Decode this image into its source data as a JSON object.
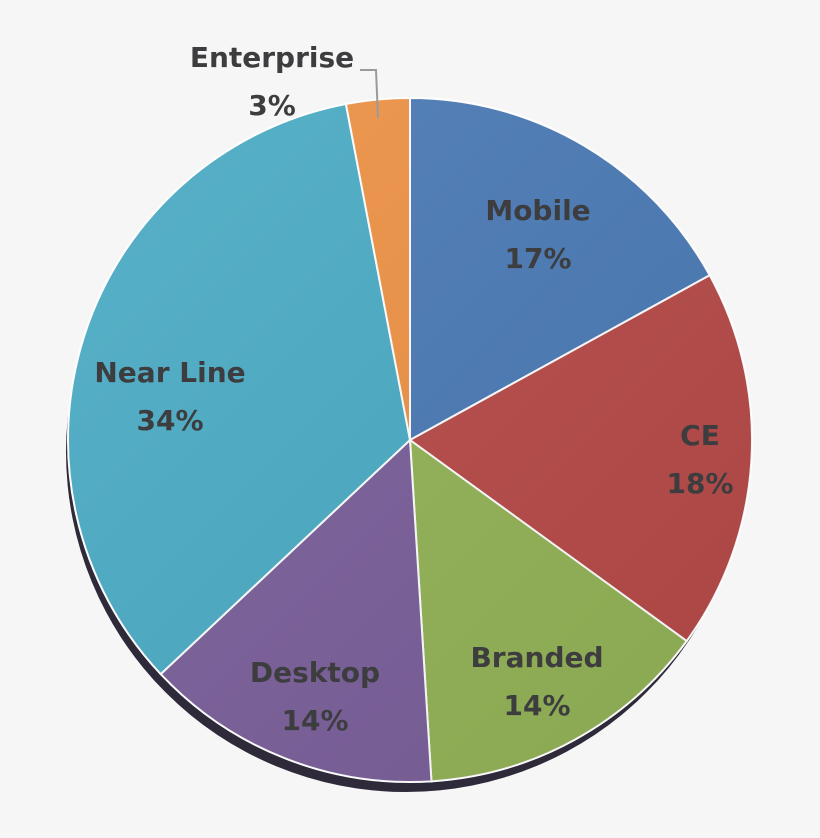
{
  "chart_data": {
    "type": "pie",
    "title": "",
    "categories": [
      "Mobile",
      "CE",
      "Branded",
      "Desktop",
      "Near Line",
      "Enterprise"
    ],
    "values": [
      17,
      18,
      14,
      14,
      34,
      3
    ],
    "labels": [
      "17%",
      "18%",
      "14%",
      "14%",
      "34%",
      "3%"
    ],
    "colors": [
      "#4a7ab5",
      "#b64a48",
      "#93b356",
      "#7a5f9a",
      "#4aabc4",
      "#ee9245"
    ],
    "start_angle_deg": 0,
    "direction": "clockwise",
    "legend": "none",
    "data_labels": "category name and percentage"
  }
}
